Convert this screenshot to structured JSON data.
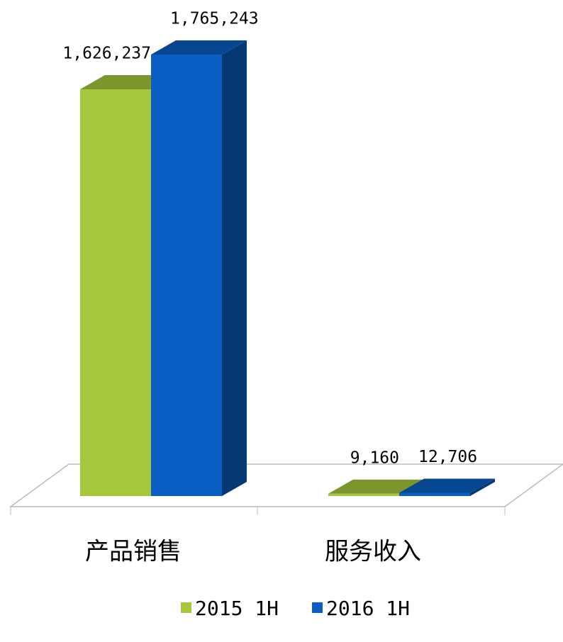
{
  "chart_data": {
    "type": "bar3d",
    "categories": [
      "产品销售",
      "服务收入"
    ],
    "series": [
      {
        "name": "2015 1H",
        "color": "#a5c73b",
        "values": [
          1626237,
          9160
        ],
        "value_labels": [
          "1,626,237",
          "9,160"
        ]
      },
      {
        "name": "2016 1H",
        "color": "#0a5dc2",
        "values": [
          1765243,
          12706
        ],
        "value_labels": [
          "1,765,243",
          "12,706"
        ]
      }
    ]
  }
}
